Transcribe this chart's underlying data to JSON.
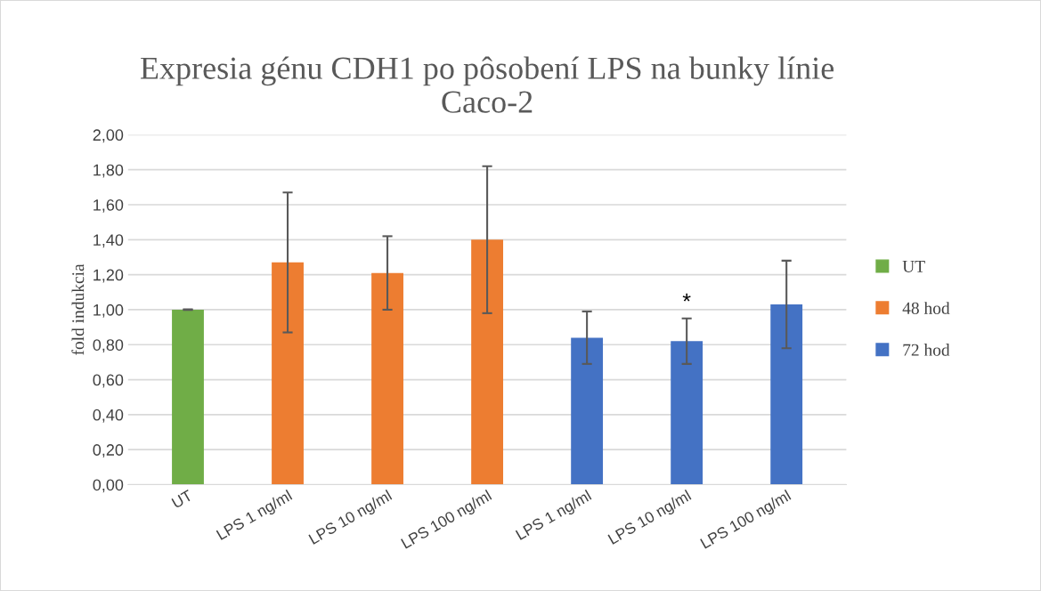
{
  "chart_data": {
    "type": "bar",
    "title": "Expresia génu CDH1 po pôsobení LPS na bunky línie\nCaco-2",
    "ylabel": "fold indukcia",
    "categories": [
      "UT",
      "LPS 1 ng/ml",
      "LPS 10 ng/ml",
      "LPS 100 ng/ml",
      "LPS 1 ng/ml",
      "LPS 10 ng/ml",
      "LPS 100 ng/ml"
    ],
    "series": [
      {
        "name": "UT",
        "color": "#70ad47",
        "values": [
          1.0,
          null,
          null,
          null,
          null,
          null,
          null
        ],
        "errors": [
          0.002,
          null,
          null,
          null,
          null,
          null,
          null
        ]
      },
      {
        "name": "48 hod",
        "color": "#ed7d31",
        "values": [
          null,
          1.27,
          1.21,
          1.4,
          null,
          null,
          null
        ],
        "errors": [
          null,
          0.4,
          0.21,
          0.42,
          null,
          null,
          null
        ]
      },
      {
        "name": "72 hod",
        "color": "#4472c4",
        "values": [
          null,
          null,
          null,
          null,
          0.84,
          0.82,
          1.03
        ],
        "errors": [
          null,
          null,
          null,
          null,
          0.15,
          0.13,
          0.25
        ],
        "value_labels": [
          null,
          null,
          null,
          null,
          null,
          "*",
          null
        ]
      }
    ],
    "ylim": [
      0,
      2
    ],
    "yticks": [
      {
        "value": 0,
        "label": "0,00"
      },
      {
        "value": 0.2,
        "label": "0,20"
      },
      {
        "value": 0.4,
        "label": "0,40"
      },
      {
        "value": 0.6,
        "label": "0,60"
      },
      {
        "value": 0.8,
        "label": "0,80"
      },
      {
        "value": 1.0,
        "label": "1,00"
      },
      {
        "value": 1.2,
        "label": "1,20"
      },
      {
        "value": 1.4,
        "label": "1,40"
      },
      {
        "value": 1.6,
        "label": "1,60"
      },
      {
        "value": 1.8,
        "label": "1,80"
      },
      {
        "value": 2.0,
        "label": "2,00"
      }
    ],
    "grid": "y",
    "legend": "right"
  }
}
